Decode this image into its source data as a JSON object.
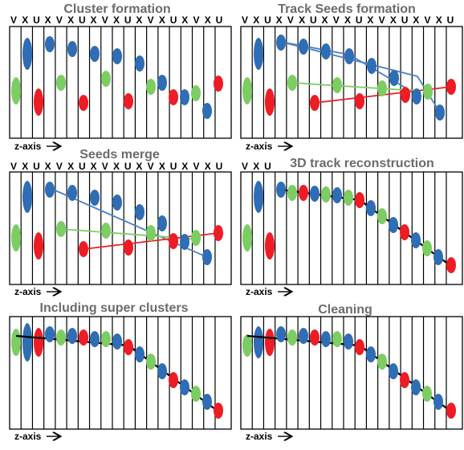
{
  "colors": {
    "blue": "#2f6db5",
    "green": "#7ccd62",
    "red": "#ee1c24",
    "line_blue": "#4a7fc1",
    "line_green": "#7ccd62",
    "line_red": "#ee1c24",
    "track": "#000000"
  },
  "axis_label": "z-axis",
  "panels": [
    {
      "title": "Cluster formation",
      "plane_labels": [
        "V",
        "X",
        "U",
        "X",
        "V",
        "X",
        "U",
        "X",
        "V",
        "X",
        "U",
        "X",
        "V",
        "X",
        "U",
        "X",
        "V",
        "X",
        "U"
      ]
    },
    {
      "title": "Track Seeds formation",
      "plane_labels": [
        "V",
        "X",
        "U",
        "X",
        "V",
        "X",
        "U",
        "X",
        "V",
        "X",
        "U",
        "X",
        "V",
        "X",
        "U",
        "X",
        "V",
        "X",
        "U"
      ]
    },
    {
      "title": "Seeds merge",
      "plane_labels": [
        "V",
        "X",
        "U",
        "X",
        "V",
        "X",
        "U",
        "X",
        "V",
        "X",
        "U",
        "X",
        "V",
        "X",
        "U",
        "X",
        "V",
        "X",
        "U"
      ]
    },
    {
      "title": "3D track reconstruction",
      "plane_labels": [
        "V",
        "X",
        "U"
      ]
    },
    {
      "title": "Including super clusters",
      "plane_labels": []
    },
    {
      "title": "Cleaning",
      "plane_labels": []
    }
  ]
}
